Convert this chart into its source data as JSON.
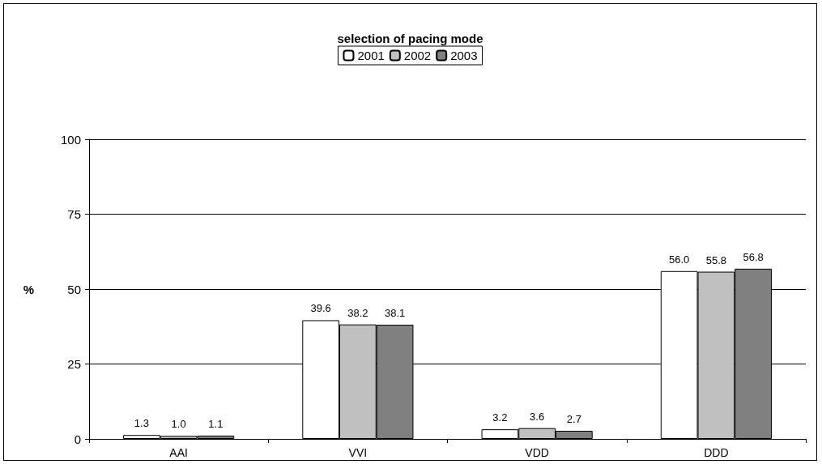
{
  "chart_data": {
    "type": "bar",
    "title": "selection of pacing mode",
    "ylabel": "%",
    "categories": [
      "AAI",
      "VVI",
      "VDD",
      "DDD"
    ],
    "series": [
      {
        "name": "2001",
        "color": "#ffffff",
        "values": [
          1.3,
          39.6,
          3.2,
          56.0
        ],
        "value_labels": [
          "1.3",
          "39.6",
          "3.2",
          "56.0"
        ]
      },
      {
        "name": "2002",
        "color": "#c0c0c0",
        "values": [
          1.0,
          38.2,
          3.6,
          55.8
        ],
        "value_labels": [
          "1.0",
          "38.2",
          "3.6",
          "55.8"
        ]
      },
      {
        "name": "2003",
        "color": "#808080",
        "values": [
          1.1,
          38.1,
          2.7,
          56.8
        ],
        "value_labels": [
          "1.1",
          "38.1",
          "2.7",
          "56.8"
        ]
      }
    ],
    "ylim": [
      0,
      100
    ],
    "yticks": [
      0,
      25,
      50,
      75,
      100
    ],
    "grid": "y",
    "legend": "top"
  }
}
